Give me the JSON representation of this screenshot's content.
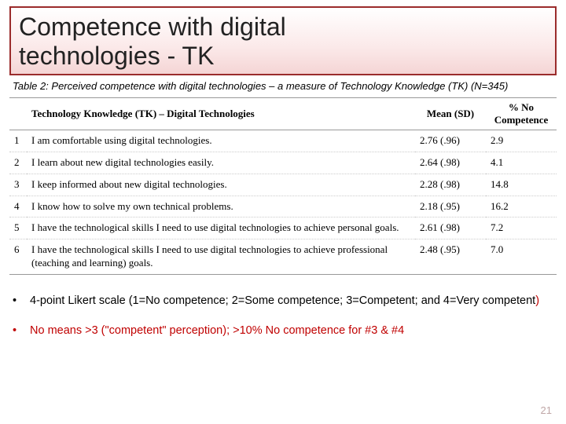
{
  "title_line1": "Competence with digital",
  "title_line2": "technologies - TK",
  "caption_lead": "Table 2:",
  "caption_rest": " Perceived competence with digital technologies – a measure of Technology Knowledge (TK) (N=345)",
  "headers": {
    "blank": "",
    "main": "Technology Knowledge (TK) – Digital Technologies",
    "mean": "Mean (SD)",
    "pct": "% No Competence"
  },
  "rows": [
    {
      "n": "1",
      "item": "I am comfortable using digital technologies.",
      "mean": "2.76 (.96)",
      "pct": "2.9"
    },
    {
      "n": "2",
      "item": "I learn about new digital technologies easily.",
      "mean": "2.64 (.98)",
      "pct": "4.1"
    },
    {
      "n": "3",
      "item": "I keep informed about new digital technologies.",
      "mean": "2.28 (.98)",
      "pct": "14.8"
    },
    {
      "n": "4",
      "item": "I know how to solve my own technical problems.",
      "mean": "2.18 (.95)",
      "pct": "16.2"
    },
    {
      "n": "5",
      "item": "I have the technological skills I need to use digital technologies to achieve personal goals.",
      "mean": "2.61 (.98)",
      "pct": "7.2"
    },
    {
      "n": "6",
      "item": "I have the technological skills I need to use digital technologies to achieve professional (teaching and learning) goals.",
      "mean": "2.48 (.95)",
      "pct": "7.0"
    }
  ],
  "bullet1_a": "4-point Likert scale (1=No competence; 2=Some competence; 3=Competent; and 4=Very competent",
  "bullet1_b": ")",
  "bullet2": "No means >3 (\"competent\" perception); >10% No competence for #3 & #4",
  "slide_number": "21",
  "colors": {
    "border": "#9b2c2c",
    "red_text": "#c00000"
  }
}
